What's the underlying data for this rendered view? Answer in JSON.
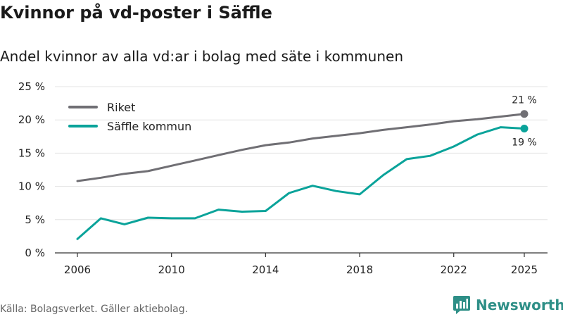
{
  "title": "Kvinnor på vd-poster i Säffle",
  "subtitle": "Andel kvinnor av alla vd:ar i bolag med säte i kommunen",
  "footer": "Källa: Bolagsverket. Gäller aktiebolag.",
  "brand": "Newsworthy",
  "colors": {
    "riket": "#706f74",
    "saffle": "#0aa39a",
    "grid": "#e3e3e3",
    "axis": "#333333",
    "brand": "#2e8f87"
  },
  "chart_data": {
    "type": "line",
    "title": "Kvinnor på vd-poster i Säffle",
    "subtitle": "Andel kvinnor av alla vd:ar i bolag med säte i kommunen",
    "xlabel": "",
    "ylabel": "",
    "x": [
      2006,
      2007,
      2008,
      2009,
      2010,
      2011,
      2012,
      2013,
      2014,
      2015,
      2016,
      2017,
      2018,
      2019,
      2020,
      2021,
      2022,
      2023,
      2024,
      2025
    ],
    "xlim": [
      2006,
      2025
    ],
    "ylim": [
      0,
      25
    ],
    "grid": true,
    "legend_position": "top-left",
    "x_ticks": [
      {
        "value": 2006,
        "label": "2006"
      },
      {
        "value": 2010,
        "label": "2010"
      },
      {
        "value": 2014,
        "label": "2014"
      },
      {
        "value": 2018,
        "label": "2018"
      },
      {
        "value": 2022,
        "label": "2022"
      },
      {
        "value": 2025,
        "label": "2025"
      }
    ],
    "y_ticks": [
      {
        "value": 0,
        "label": "0 %"
      },
      {
        "value": 5,
        "label": "5 %"
      },
      {
        "value": 10,
        "label": "10 %"
      },
      {
        "value": 15,
        "label": "15 %"
      },
      {
        "value": 20,
        "label": "20 %"
      },
      {
        "value": 25,
        "label": "25 %"
      }
    ],
    "series": [
      {
        "key": "riket",
        "name": "Riket",
        "color": "#706f74",
        "values": [
          10.8,
          11.3,
          11.9,
          12.3,
          13.1,
          13.9,
          14.7,
          15.5,
          16.2,
          16.6,
          17.2,
          17.6,
          18.0,
          18.5,
          18.9,
          19.3,
          19.8,
          20.1,
          20.5,
          20.9
        ],
        "end_label": "21 %"
      },
      {
        "key": "saffle",
        "name": "Säffle kommun",
        "color": "#0aa39a",
        "values": [
          2.1,
          5.2,
          4.3,
          5.3,
          5.2,
          5.2,
          6.5,
          6.2,
          6.3,
          9.0,
          10.1,
          9.3,
          8.8,
          11.7,
          14.1,
          14.6,
          16.0,
          17.8,
          18.9,
          18.7
        ],
        "end_label": "19 %"
      }
    ]
  }
}
